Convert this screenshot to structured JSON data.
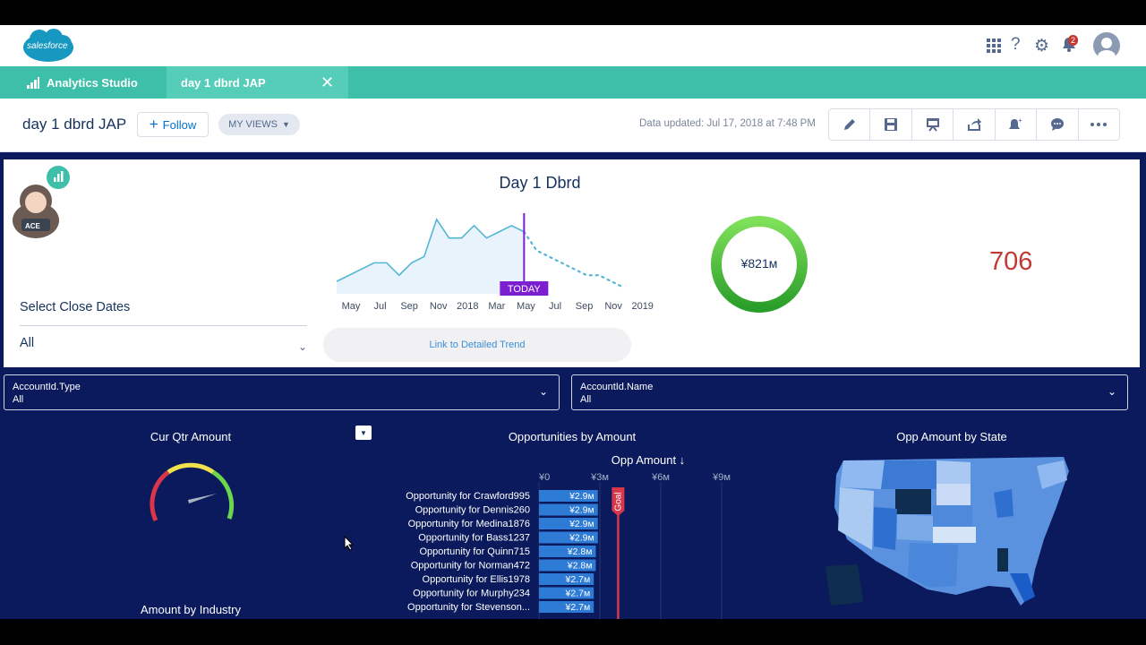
{
  "header": {
    "logo_text": "salesforce",
    "notifications_count": "2"
  },
  "tabs": {
    "home_label": "Analytics Studio",
    "active_label": "day 1 dbrd JAP"
  },
  "page": {
    "title": "day 1 dbrd JAP",
    "follow_label": "Follow",
    "views_label": "MY VIEWS",
    "data_updated": "Data updated: Jul 17, 2018 at 7:48 PM"
  },
  "top_panel": {
    "title": "Day 1 Dbrd",
    "mascot_badge": "ACE",
    "select_label": "Select Close Dates",
    "select_value": "All",
    "today_label": "TODAY",
    "link_label": "Link to Detailed Trend",
    "donut_value": "¥821м",
    "big_number": "706"
  },
  "trend_chart": {
    "type": "line",
    "x_ticks": [
      "May",
      "Jul",
      "Sep",
      "Nov",
      "2018",
      "Mar",
      "May",
      "Jul",
      "Sep",
      "Nov",
      "2019"
    ],
    "actual": [
      2,
      3,
      4,
      5,
      5,
      3,
      5,
      6,
      12,
      9,
      9,
      11,
      9,
      10,
      11,
      10
    ],
    "projected": [
      7,
      6,
      5,
      4,
      3,
      3,
      2,
      1
    ],
    "ylim": [
      0,
      13
    ]
  },
  "filters": {
    "type_label": "AccountId.Type",
    "type_value": "All",
    "name_label": "AccountId.Name",
    "name_value": "All"
  },
  "widgets": {
    "gauge_title": "Cur Qtr Amount",
    "industry_title": "Amount by Industry",
    "opps_title": "Opportunities by Amount",
    "map_title": "Opp Amount by State"
  },
  "chart_data": {
    "type": "bar",
    "xlabel": "Opp Amount ↓",
    "x_ticks": [
      "¥0",
      "¥3м",
      "¥6м",
      "¥9м"
    ],
    "xlim": [
      0,
      10
    ],
    "goal_label": "Goal",
    "goal_value": 3.9,
    "categories": [
      "Opportunity for Crawford995",
      "Opportunity for Dennis260",
      "Opportunity for Medina1876",
      "Opportunity for Bass1237",
      "Opportunity for Quinn715",
      "Opportunity for Norman472",
      "Opportunity for Ellis1978",
      "Opportunity for Murphy234",
      "Opportunity for Stevenson..."
    ],
    "values": [
      2.9,
      2.9,
      2.9,
      2.9,
      2.8,
      2.8,
      2.7,
      2.7,
      2.7
    ],
    "value_labels": [
      "¥2.9м",
      "¥2.9м",
      "¥2.9м",
      "¥2.9м",
      "¥2.8м",
      "¥2.8м",
      "¥2.7м",
      "¥2.7м",
      "¥2.7м"
    ]
  },
  "colors": {
    "teal": "#3ebfa9",
    "navy": "#0b1a5c",
    "bar_blue": "#2e7bd6",
    "goal_red": "#d9364a",
    "today_purple": "#7c1fd0"
  }
}
